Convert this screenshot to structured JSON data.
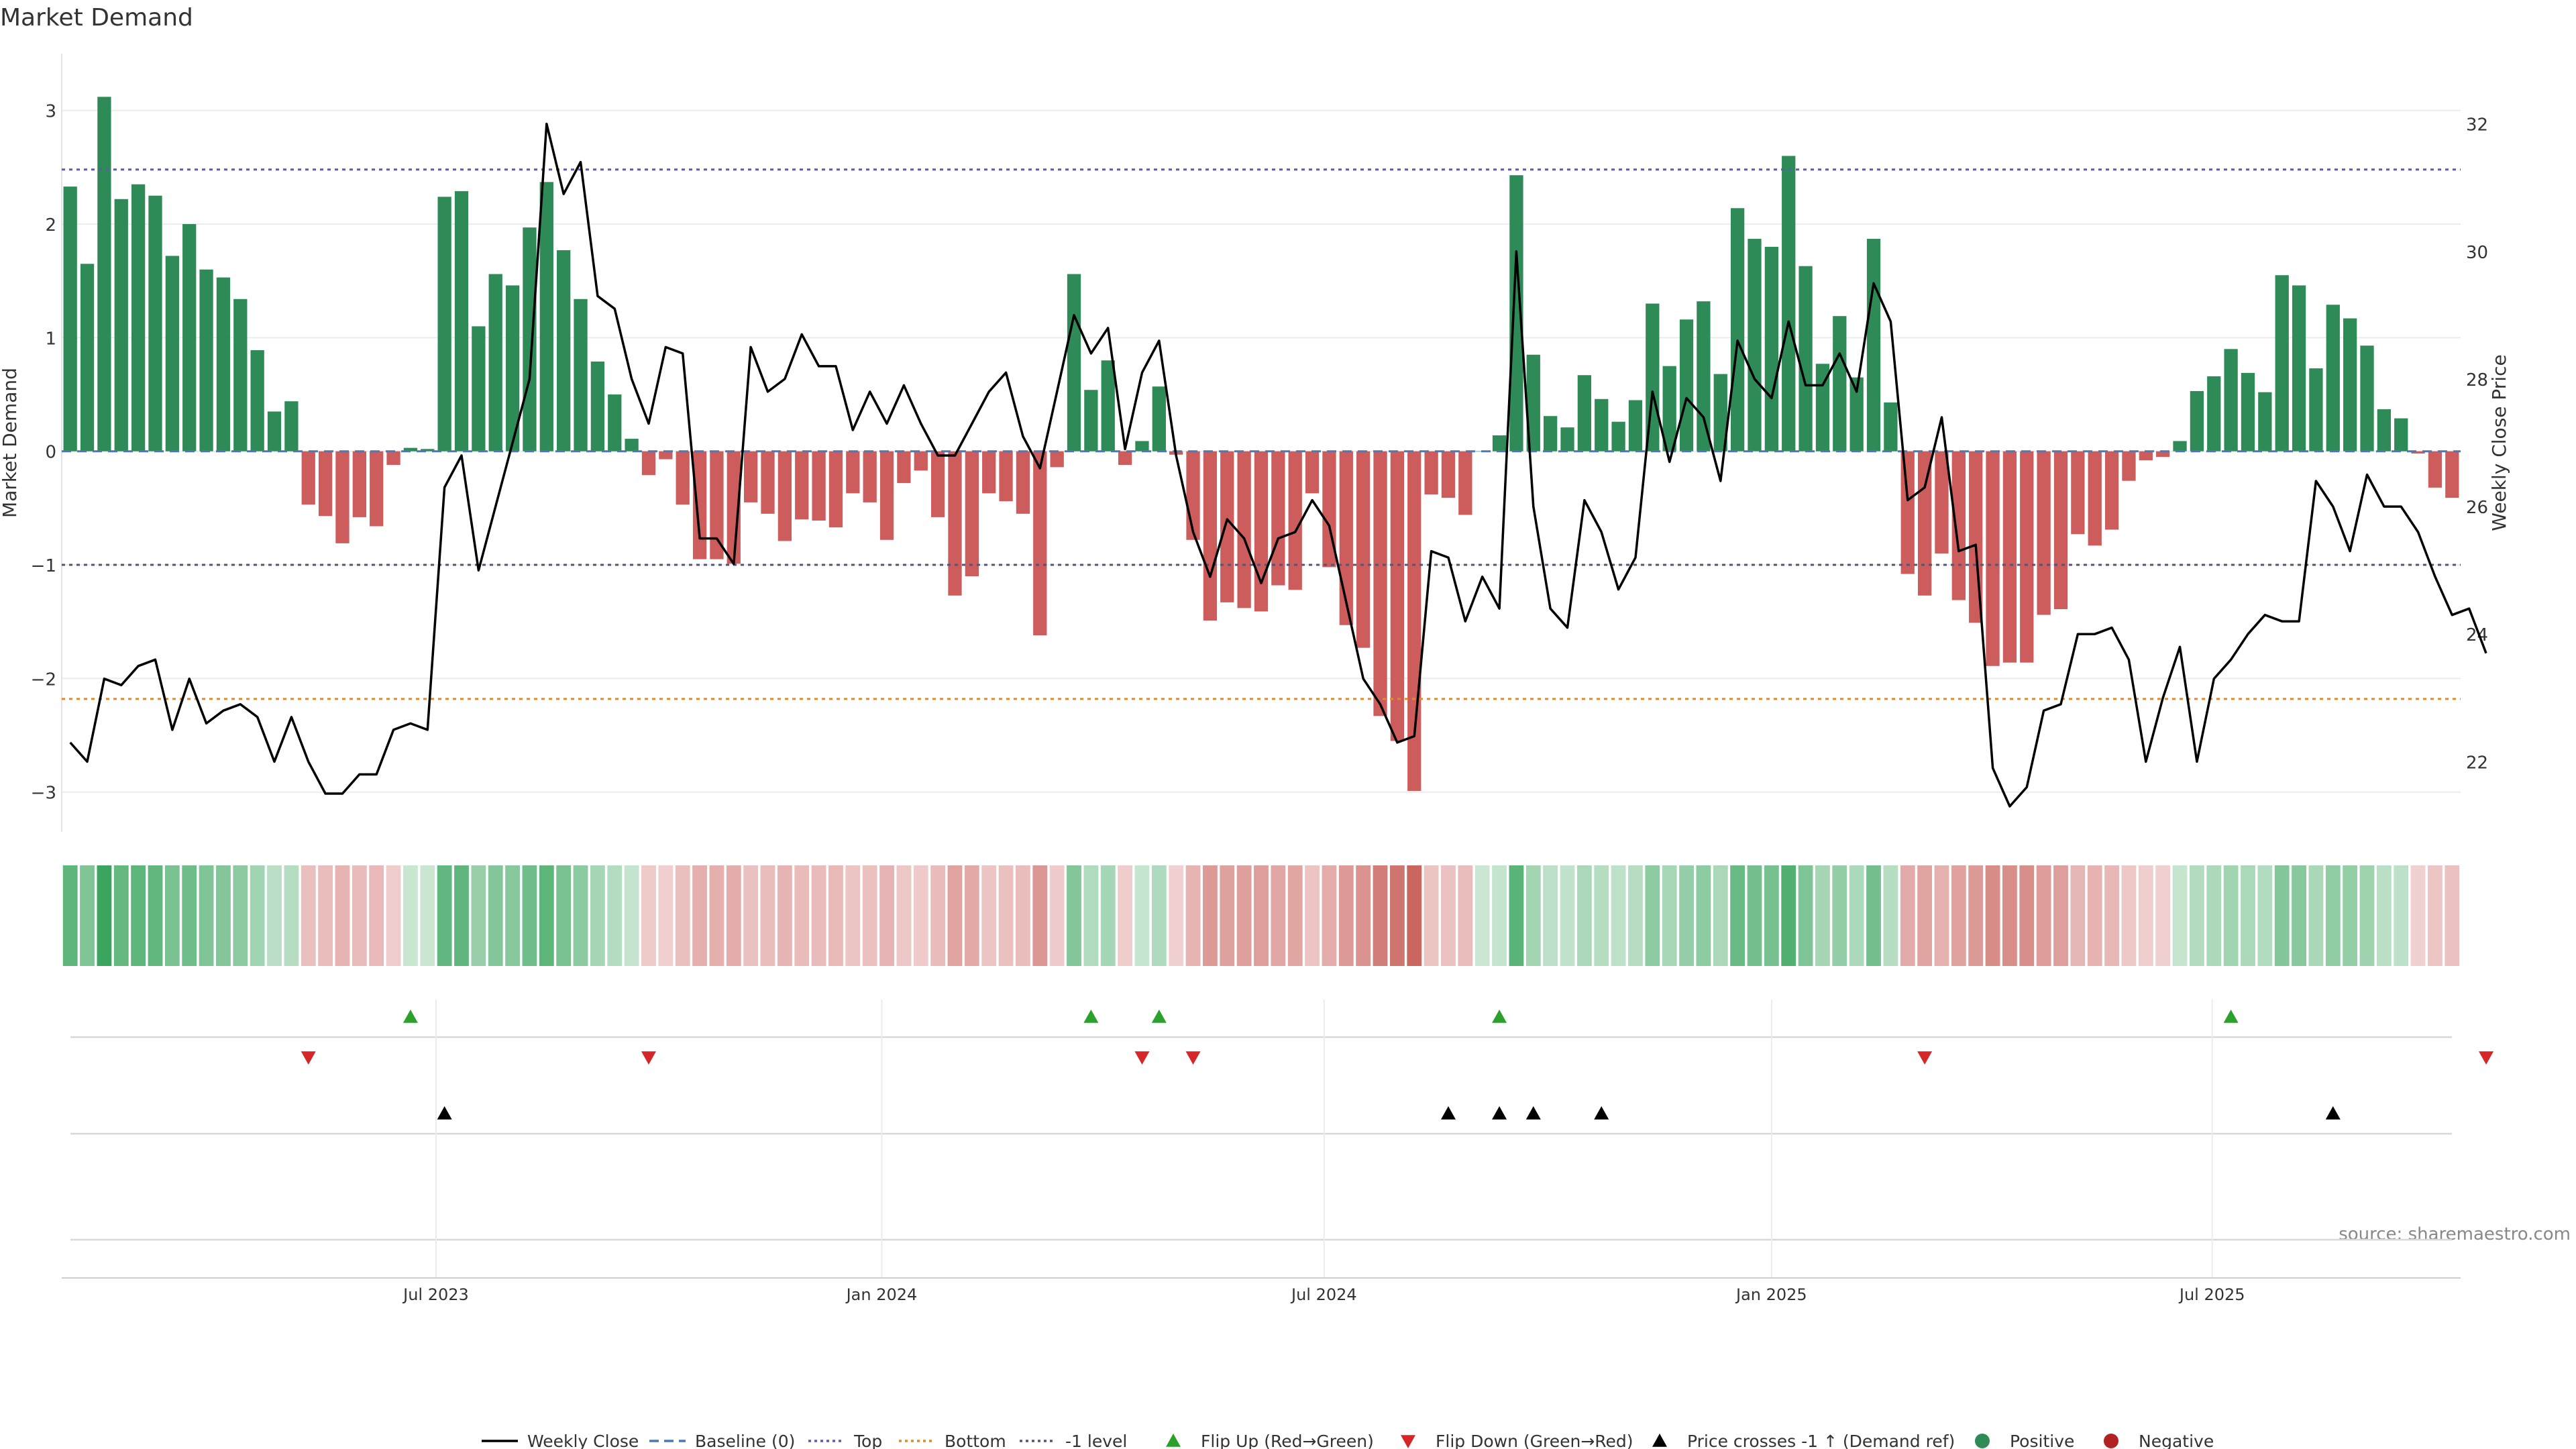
{
  "chart_data": {
    "type": "bar",
    "title": "Market Demand",
    "ylabel": "Market Demand",
    "y2label": "Weekly Close Price",
    "source": "source: sharemaestro.com",
    "ylim": [
      -3.35,
      3.5
    ],
    "y2lim": [
      20.9,
      33.1
    ],
    "y_ticks": [
      3,
      2,
      1,
      0,
      -1,
      -2,
      -3
    ],
    "y_tick_labels": [
      "3",
      "2",
      "1",
      "0",
      "−1",
      "−2",
      "−3"
    ],
    "y2_ticks": [
      32,
      30,
      28,
      26,
      24,
      22
    ],
    "y2_tick_labels": [
      "32",
      "30",
      "28",
      "26",
      "24",
      "22"
    ],
    "x_ticks": [
      {
        "week": 22,
        "label": "Jul 2023"
      },
      {
        "week": 48.2,
        "label": "Jan 2024"
      },
      {
        "week": 74.2,
        "label": "Jul 2024"
      },
      {
        "week": 100.5,
        "label": "Jan 2025"
      },
      {
        "week": 126.4,
        "label": "Jul 2025"
      }
    ],
    "levels": {
      "top": 2.48,
      "bottom": -2.18,
      "minus_one": -1.0,
      "baseline": 0
    },
    "colors": {
      "positive": "#2e8b57",
      "negative": "#cd5c5c",
      "line": "#000000",
      "top": "#5b5bb0",
      "bottom": "#e08a2c",
      "minus_one": "#555577",
      "baseline": "#4a7ab5",
      "flip_up": "#2ca02c",
      "flip_down": "#d62728",
      "cross": "#000000"
    },
    "series": [
      {
        "name": "Market Demand",
        "type": "bar",
        "values": [
          2.33,
          1.65,
          3.12,
          2.22,
          2.35,
          2.25,
          1.72,
          2.0,
          1.6,
          1.53,
          1.34,
          0.89,
          0.35,
          0.44,
          -0.47,
          -0.57,
          -0.81,
          -0.58,
          -0.66,
          -0.12,
          0.03,
          0.02,
          2.24,
          2.29,
          1.1,
          1.56,
          1.46,
          1.97,
          2.37,
          1.77,
          1.34,
          0.79,
          0.5,
          0.11,
          -0.21,
          -0.07,
          -0.47,
          -0.95,
          -0.95,
          -0.99,
          -0.45,
          -0.55,
          -0.79,
          -0.6,
          -0.61,
          -0.67,
          -0.37,
          -0.45,
          -0.78,
          -0.28,
          -0.17,
          -0.58,
          -1.27,
          -1.1,
          -0.37,
          -0.44,
          -0.55,
          -1.62,
          -0.14,
          1.56,
          0.54,
          0.8,
          -0.12,
          0.09,
          0.57,
          -0.03,
          -0.78,
          -1.49,
          -1.33,
          -1.38,
          -1.41,
          -1.18,
          -1.22,
          -0.37,
          -1.02,
          -1.53,
          -1.73,
          -2.33,
          -2.55,
          -2.99,
          -0.38,
          -0.41,
          -0.56,
          0.0,
          0.14,
          2.43,
          0.85,
          0.31,
          0.21,
          0.67,
          0.46,
          0.26,
          0.45,
          1.3,
          0.75,
          1.16,
          1.32,
          0.68,
          2.14,
          1.87,
          1.8,
          2.6,
          1.63,
          0.77,
          1.19,
          0.65,
          1.87,
          0.43,
          -1.08,
          -1.27,
          -0.9,
          -1.31,
          -1.51,
          -1.89,
          -1.86,
          -1.86,
          -1.44,
          -1.39,
          -0.73,
          -0.83,
          -0.69,
          -0.26,
          -0.08,
          -0.05,
          0.09,
          0.53,
          0.66,
          0.9,
          0.69,
          0.52,
          1.55,
          1.46,
          0.73,
          1.29,
          1.17,
          0.93,
          0.37,
          0.29,
          -0.02,
          -0.32,
          -0.41
        ]
      },
      {
        "name": "Weekly Close",
        "type": "line",
        "axis": "right",
        "values": [
          22.3,
          22.0,
          23.3,
          23.2,
          23.5,
          23.6,
          22.5,
          23.3,
          22.6,
          22.8,
          22.9,
          22.7,
          22.0,
          22.7,
          22.0,
          21.5,
          21.5,
          21.8,
          21.8,
          22.5,
          22.6,
          22.5,
          26.3,
          26.8,
          25.0,
          26.0,
          27.0,
          28.0,
          32.0,
          30.9,
          31.4,
          29.3,
          29.1,
          28.0,
          27.3,
          28.5,
          28.4,
          25.5,
          25.5,
          25.1,
          28.5,
          27.8,
          28.0,
          28.7,
          28.2,
          28.2,
          27.2,
          27.8,
          27.3,
          27.9,
          27.3,
          26.8,
          26.8,
          27.3,
          27.8,
          28.1,
          27.1,
          26.6,
          27.8,
          29.0,
          28.4,
          28.8,
          26.9,
          28.1,
          28.6,
          26.8,
          25.6,
          24.9,
          25.8,
          25.5,
          24.8,
          25.5,
          25.6,
          26.1,
          25.7,
          24.5,
          23.3,
          22.9,
          22.3,
          22.4,
          25.3,
          25.2,
          24.2,
          24.9,
          24.4,
          30.0,
          26.0,
          24.4,
          24.1,
          26.1,
          25.6,
          24.7,
          25.2,
          27.8,
          26.7,
          27.7,
          27.4,
          26.4,
          28.6,
          28.0,
          27.7,
          28.9,
          27.9,
          27.9,
          28.4,
          27.8,
          29.5,
          28.9,
          26.1,
          26.3,
          27.4,
          25.3,
          25.4,
          21.9,
          21.3,
          21.6,
          22.8,
          22.9,
          24.0,
          24.0,
          24.1,
          23.6,
          22.0,
          23.0,
          23.8,
          22.0,
          23.3,
          23.6,
          24.0,
          24.3,
          24.2,
          24.2,
          26.4,
          26.0,
          25.3,
          26.5,
          26.0,
          26.0,
          25.6,
          24.9,
          24.3,
          24.4,
          23.7
        ]
      }
    ],
    "heat_strip": {
      "label": "",
      "values_source": "Market Demand"
    },
    "markers": {
      "flip_up_weeks": [
        20,
        60,
        64,
        84,
        127
      ],
      "flip_down_weeks": [
        14,
        34,
        63,
        66,
        109,
        142
      ],
      "price_cross_weeks": [
        22,
        81,
        84,
        86,
        90,
        133
      ]
    },
    "legend": {
      "placement": "bottom",
      "items": [
        {
          "label": "Weekly Close",
          "kind": "line-solid",
          "color": "#000000"
        },
        {
          "label": "Baseline (0)",
          "kind": "line-dashed",
          "color": "#4a7ab5"
        },
        {
          "label": "Top",
          "kind": "line-dotted",
          "color": "#5b5bb0"
        },
        {
          "label": "Bottom",
          "kind": "line-dotted",
          "color": "#e08a2c"
        },
        {
          "label": "-1 level",
          "kind": "line-dotted",
          "color": "#555577"
        },
        {
          "label": "Flip Up (Red→Green)",
          "kind": "triangle-up",
          "color": "#2ca02c"
        },
        {
          "label": "Flip Down (Green→Red)",
          "kind": "triangle-down",
          "color": "#d62728"
        },
        {
          "label": "Price crosses -1 ↑ (Demand ref)",
          "kind": "triangle-up",
          "color": "#000000"
        },
        {
          "label": "Positive",
          "kind": "circle",
          "color": "#2e8b57"
        },
        {
          "label": "Negative",
          "kind": "circle",
          "color": "#b22222"
        }
      ]
    }
  }
}
